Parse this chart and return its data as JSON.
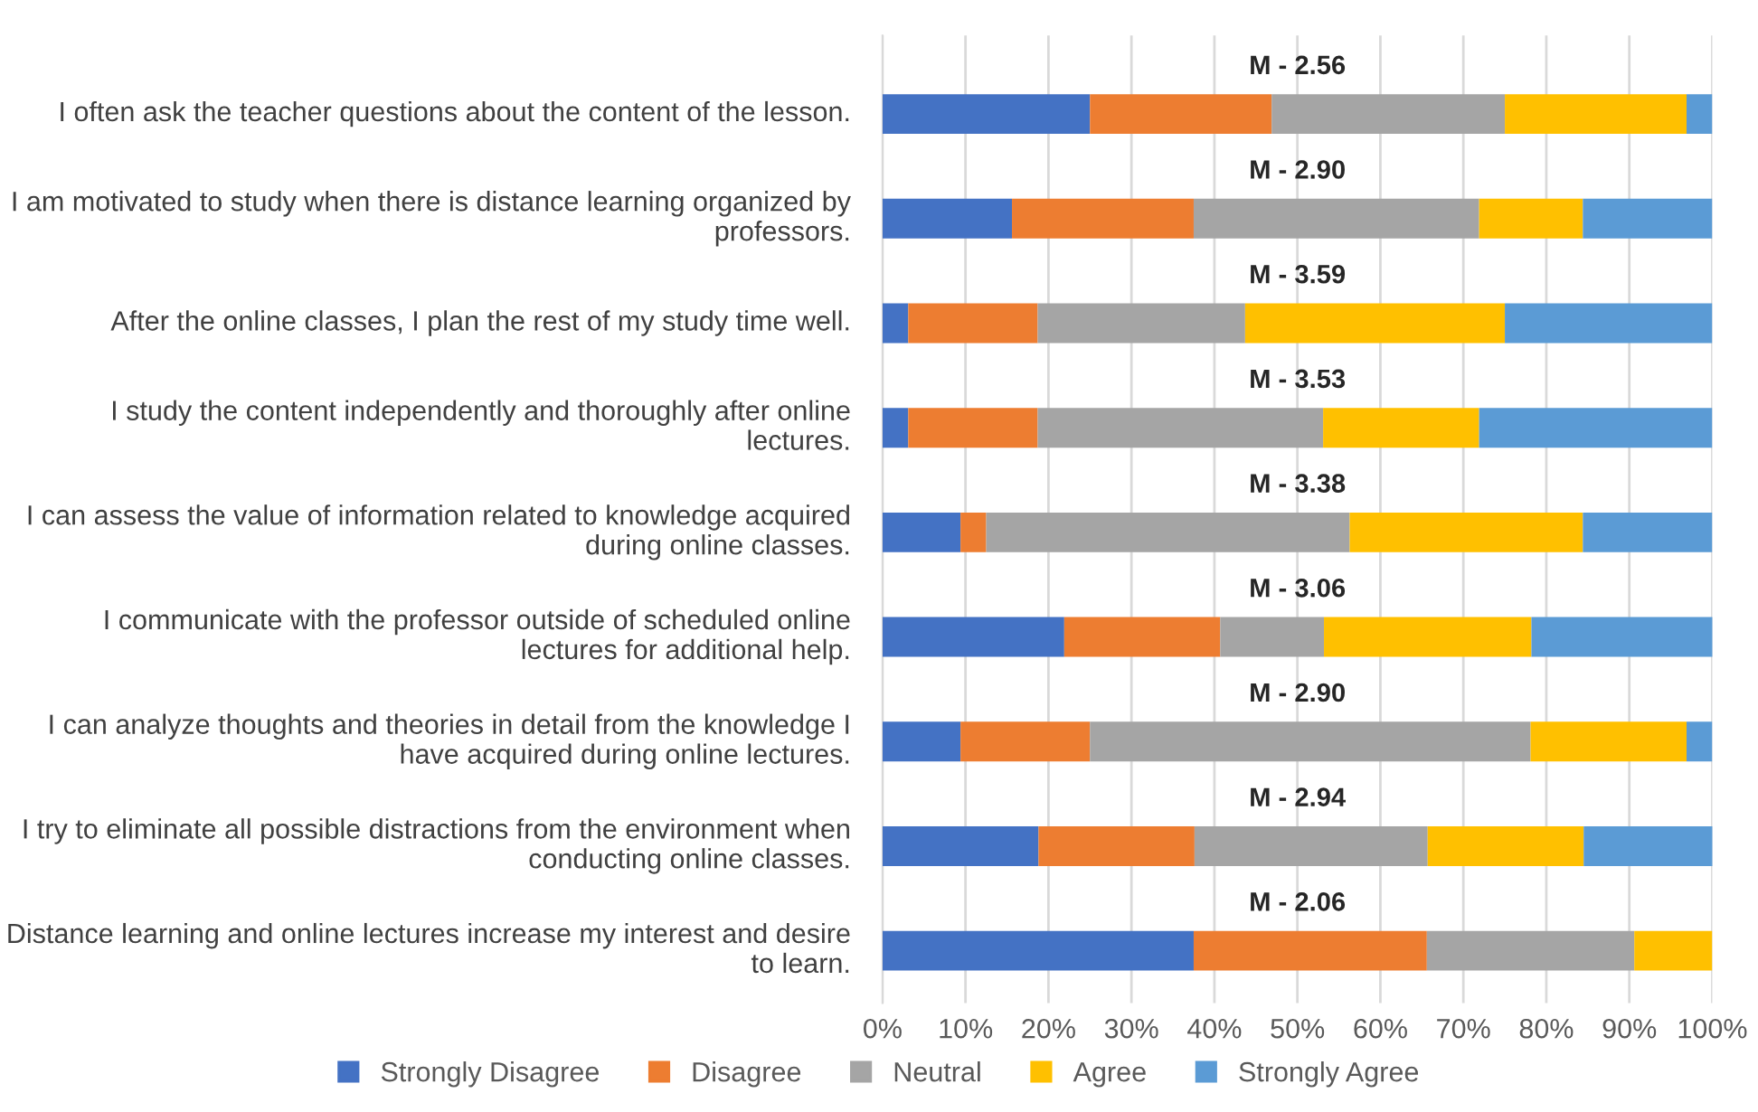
{
  "chart_data": {
    "type": "bar",
    "orientation": "horizontal",
    "stacked": true,
    "categories": [
      "I often ask the teacher questions about the content of the lesson.",
      "I am motivated to study when there is distance learning organized by professors.",
      "After the online classes, I plan the rest of my study time well.",
      "I study the content independently and thoroughly after online lectures.",
      "I can assess the value of information related to knowledge acquired during online classes.",
      "I communicate with the professor outside of scheduled online lectures for additional help.",
      "I can analyze thoughts and theories in detail from the knowledge I have acquired during online lectures.",
      "I try to eliminate all possible distractions from the environment when conducting online classes.",
      "Distance learning and online lectures increase my interest and desire to learn."
    ],
    "series": [
      {
        "name": "Strongly Disagree",
        "color": "#4472c4",
        "values": [
          25,
          15.6,
          3.1,
          3.1,
          9.4,
          21.9,
          9.4,
          18.8,
          37.5
        ]
      },
      {
        "name": "Disagree",
        "color": "#ed7d31",
        "values": [
          21.9,
          21.9,
          15.6,
          15.6,
          3.1,
          18.8,
          15.6,
          18.8,
          28.1
        ]
      },
      {
        "name": "Neutral",
        "color": "#a5a5a5",
        "values": [
          28.1,
          34.4,
          25,
          34.4,
          43.8,
          12.5,
          53.1,
          28.1,
          25
        ]
      },
      {
        "name": "Agree",
        "color": "#ffc000",
        "values": [
          21.9,
          12.5,
          31.3,
          18.8,
          28.1,
          25,
          18.8,
          18.8,
          9.4
        ]
      },
      {
        "name": "Strongly Agree",
        "color": "#5b9bd5",
        "values": [
          3.1,
          15.6,
          25,
          28.1,
          15.6,
          21.9,
          3.1,
          15.6,
          0
        ]
      }
    ],
    "annotations": [
      "M - 2.56",
      "M - 2.90",
      "M - 3.59",
      "M - 3.53",
      "M - 3.38",
      "M - 3.06",
      "M - 2.90",
      "M - 2.94",
      "M - 2.06"
    ],
    "xlim": [
      0,
      100
    ],
    "xticks": [
      {
        "value": 0,
        "label": "0%"
      },
      {
        "value": 10,
        "label": "10%"
      },
      {
        "value": 20,
        "label": "20%"
      },
      {
        "value": 30,
        "label": "30%"
      },
      {
        "value": 40,
        "label": "40%"
      },
      {
        "value": 50,
        "label": "50%"
      },
      {
        "value": 60,
        "label": "60%"
      },
      {
        "value": 70,
        "label": "70%"
      },
      {
        "value": 80,
        "label": "80%"
      },
      {
        "value": 90,
        "label": "90%"
      },
      {
        "value": 100,
        "label": "100%"
      }
    ],
    "grid": "x",
    "legend": "bottom"
  }
}
